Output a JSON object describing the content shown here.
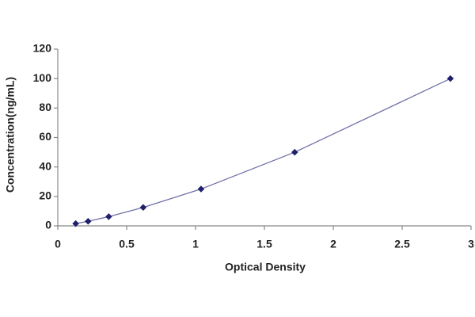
{
  "chart_data": {
    "type": "line",
    "x_label": "Optical Density",
    "y_label": "Concentration(ng/mL)",
    "x": [
      0.13,
      0.22,
      0.37,
      0.62,
      1.04,
      1.72,
      2.85
    ],
    "series": [
      {
        "color": "#1f1f6b",
        "values": [
          1.56,
          3.12,
          6.25,
          12.5,
          25,
          50,
          100
        ]
      }
    ],
    "line_color": "#7070a8",
    "xlim": [
      0,
      3
    ],
    "xticks": [
      0,
      0.5,
      1,
      1.5,
      2,
      2.5,
      3
    ],
    "ylim": [
      0,
      120
    ],
    "yticks": [
      0,
      20,
      40,
      60,
      80,
      100,
      120
    ],
    "grid": false
  }
}
